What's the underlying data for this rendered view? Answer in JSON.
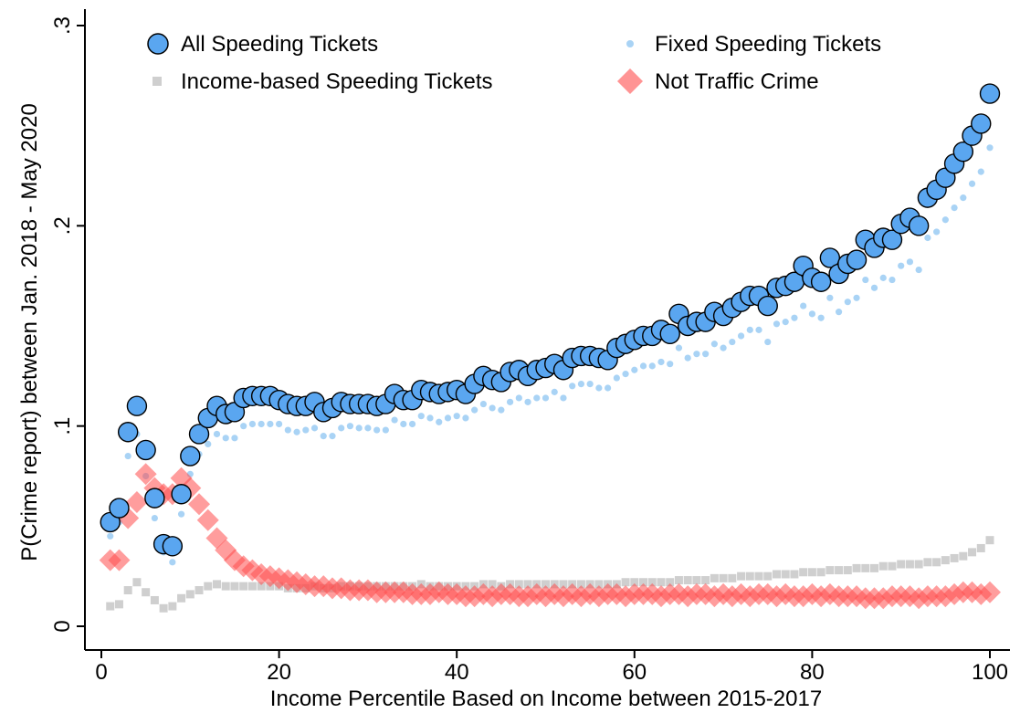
{
  "chart_data": {
    "type": "scatter",
    "xlabel": "Income Percentile Based on Income between 2015-2017",
    "ylabel": "P(Crime report) between Jan. 2018 - May 2020",
    "xlim": [
      0,
      100
    ],
    "ylim": [
      0,
      0.3
    ],
    "xticks": [
      0,
      20,
      40,
      60,
      80,
      100
    ],
    "xtick_labels": [
      "0",
      "20",
      "40",
      "60",
      "80",
      "100"
    ],
    "yticks": [
      0,
      0.1,
      0.2,
      0.3
    ],
    "ytick_labels": [
      "0",
      ".1",
      ".2",
      ".3"
    ],
    "grid": false,
    "legend_placement": "top",
    "x": [
      1,
      2,
      3,
      4,
      5,
      6,
      7,
      8,
      9,
      10,
      11,
      12,
      13,
      14,
      15,
      16,
      17,
      18,
      19,
      20,
      21,
      22,
      23,
      24,
      25,
      26,
      27,
      28,
      29,
      30,
      31,
      32,
      33,
      34,
      35,
      36,
      37,
      38,
      39,
      40,
      41,
      42,
      43,
      44,
      45,
      46,
      47,
      48,
      49,
      50,
      51,
      52,
      53,
      54,
      55,
      56,
      57,
      58,
      59,
      60,
      61,
      62,
      63,
      64,
      65,
      66,
      67,
      68,
      69,
      70,
      71,
      72,
      73,
      74,
      75,
      76,
      77,
      78,
      79,
      80,
      81,
      82,
      83,
      84,
      85,
      86,
      87,
      88,
      89,
      90,
      91,
      92,
      93,
      94,
      95,
      96,
      97,
      98,
      99,
      100
    ],
    "series": [
      {
        "name": "All Speeding Tickets",
        "marker": "circle",
        "color": "#5aa6f0",
        "values": [
          0.052,
          0.059,
          0.097,
          0.11,
          0.088,
          0.064,
          0.041,
          0.04,
          0.066,
          0.085,
          0.096,
          0.104,
          0.11,
          0.106,
          0.107,
          0.114,
          0.115,
          0.115,
          0.115,
          0.113,
          0.111,
          0.11,
          0.11,
          0.112,
          0.107,
          0.109,
          0.112,
          0.111,
          0.111,
          0.111,
          0.11,
          0.111,
          0.116,
          0.113,
          0.113,
          0.118,
          0.117,
          0.116,
          0.117,
          0.118,
          0.116,
          0.121,
          0.125,
          0.123,
          0.122,
          0.127,
          0.128,
          0.125,
          0.128,
          0.129,
          0.131,
          0.128,
          0.134,
          0.135,
          0.135,
          0.134,
          0.133,
          0.139,
          0.141,
          0.143,
          0.145,
          0.145,
          0.148,
          0.146,
          0.156,
          0.15,
          0.152,
          0.152,
          0.157,
          0.155,
          0.159,
          0.162,
          0.165,
          0.165,
          0.16,
          0.169,
          0.17,
          0.172,
          0.18,
          0.174,
          0.172,
          0.184,
          0.176,
          0.181,
          0.183,
          0.193,
          0.189,
          0.194,
          0.193,
          0.201,
          0.204,
          0.2,
          0.214,
          0.218,
          0.224,
          0.231,
          0.237,
          0.245,
          0.251,
          0.266
        ]
      },
      {
        "name": "Fixed Speeding Tickets",
        "marker": "dot",
        "color": "#a9d3f5",
        "values": [
          0.045,
          0.052,
          0.085,
          0.096,
          0.075,
          0.054,
          0.037,
          0.032,
          0.056,
          0.076,
          0.086,
          0.091,
          0.096,
          0.094,
          0.094,
          0.1,
          0.101,
          0.101,
          0.101,
          0.101,
          0.098,
          0.097,
          0.098,
          0.099,
          0.095,
          0.095,
          0.099,
          0.1,
          0.099,
          0.099,
          0.098,
          0.098,
          0.103,
          0.101,
          0.101,
          0.105,
          0.104,
          0.102,
          0.104,
          0.105,
          0.104,
          0.108,
          0.111,
          0.109,
          0.108,
          0.112,
          0.114,
          0.112,
          0.114,
          0.114,
          0.117,
          0.114,
          0.12,
          0.121,
          0.121,
          0.119,
          0.119,
          0.124,
          0.126,
          0.128,
          0.13,
          0.13,
          0.132,
          0.131,
          0.139,
          0.134,
          0.136,
          0.136,
          0.141,
          0.139,
          0.142,
          0.145,
          0.148,
          0.148,
          0.142,
          0.151,
          0.152,
          0.154,
          0.16,
          0.156,
          0.154,
          0.164,
          0.157,
          0.162,
          0.164,
          0.173,
          0.169,
          0.174,
          0.173,
          0.18,
          0.182,
          0.178,
          0.194,
          0.197,
          0.203,
          0.209,
          0.214,
          0.221,
          0.227,
          0.239
        ]
      },
      {
        "name": "Income-based Speeding Tickets",
        "marker": "square",
        "color": "#cfcfcf",
        "values": [
          0.01,
          0.011,
          0.018,
          0.022,
          0.017,
          0.013,
          0.009,
          0.01,
          0.014,
          0.016,
          0.018,
          0.02,
          0.021,
          0.02,
          0.02,
          0.02,
          0.02,
          0.02,
          0.02,
          0.02,
          0.019,
          0.019,
          0.019,
          0.02,
          0.019,
          0.019,
          0.02,
          0.02,
          0.02,
          0.02,
          0.02,
          0.02,
          0.02,
          0.02,
          0.02,
          0.021,
          0.02,
          0.02,
          0.02,
          0.02,
          0.02,
          0.02,
          0.021,
          0.021,
          0.02,
          0.021,
          0.021,
          0.021,
          0.021,
          0.021,
          0.021,
          0.021,
          0.021,
          0.021,
          0.021,
          0.021,
          0.021,
          0.021,
          0.022,
          0.022,
          0.022,
          0.022,
          0.022,
          0.022,
          0.023,
          0.023,
          0.023,
          0.023,
          0.024,
          0.024,
          0.024,
          0.025,
          0.025,
          0.025,
          0.025,
          0.026,
          0.026,
          0.026,
          0.027,
          0.027,
          0.027,
          0.028,
          0.028,
          0.028,
          0.029,
          0.029,
          0.029,
          0.03,
          0.03,
          0.031,
          0.031,
          0.031,
          0.032,
          0.032,
          0.033,
          0.034,
          0.035,
          0.037,
          0.039,
          0.043
        ]
      },
      {
        "name": "Not Traffic Crime",
        "marker": "diamond",
        "color": "#ff4d4d",
        "values": [
          0.033,
          0.033,
          0.054,
          0.062,
          0.076,
          0.069,
          0.066,
          0.066,
          0.074,
          0.069,
          0.061,
          0.053,
          0.044,
          0.038,
          0.033,
          0.03,
          0.028,
          0.026,
          0.025,
          0.024,
          0.023,
          0.022,
          0.021,
          0.02,
          0.02,
          0.019,
          0.019,
          0.018,
          0.018,
          0.018,
          0.017,
          0.017,
          0.017,
          0.017,
          0.016,
          0.016,
          0.016,
          0.017,
          0.016,
          0.016,
          0.015,
          0.015,
          0.016,
          0.015,
          0.016,
          0.016,
          0.015,
          0.015,
          0.016,
          0.015,
          0.016,
          0.015,
          0.016,
          0.015,
          0.016,
          0.015,
          0.016,
          0.016,
          0.015,
          0.016,
          0.016,
          0.016,
          0.015,
          0.016,
          0.016,
          0.015,
          0.016,
          0.016,
          0.015,
          0.016,
          0.015,
          0.016,
          0.015,
          0.016,
          0.016,
          0.015,
          0.016,
          0.015,
          0.015,
          0.016,
          0.015,
          0.016,
          0.015,
          0.015,
          0.015,
          0.014,
          0.014,
          0.014,
          0.015,
          0.015,
          0.015,
          0.014,
          0.015,
          0.015,
          0.015,
          0.016,
          0.017,
          0.017,
          0.016,
          0.017
        ]
      }
    ]
  }
}
